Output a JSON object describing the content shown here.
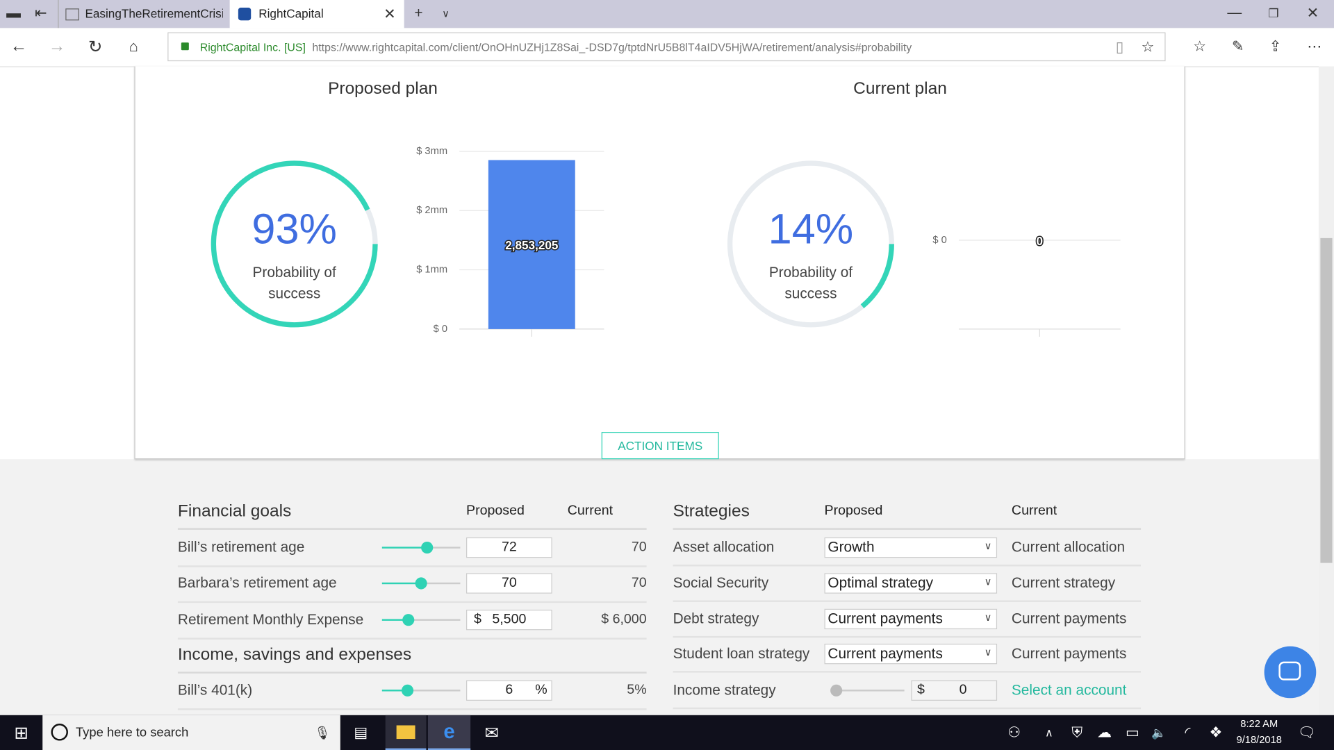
{
  "browser": {
    "tabs": [
      "EasingTheRetirementCrisisN",
      "RightCapital"
    ],
    "site_identity": "RightCapital Inc. [US]",
    "url": "https://www.rightcapital.com/client/OnOHnUZHj1Z8Sai_-DSD7g/tptdNrU5B8lT4aIDV5HjWA/retirement/analysis#probability"
  },
  "plans": [
    {
      "title": "Proposed plan",
      "probability": {
        "value": 93,
        "label": "93%"
      },
      "caption": "Probability of success",
      "chart": {
        "type": "bar",
        "values": [
          2853205
        ],
        "value_labels": [
          "2,853,205"
        ],
        "ylim": [
          0,
          3000000
        ],
        "yticks": [
          {
            "value": 0,
            "label": "$ 0"
          },
          {
            "value": 1000000,
            "label": "$ 1mm"
          },
          {
            "value": 2000000,
            "label": "$ 2mm"
          },
          {
            "value": 3000000,
            "label": "$ 3mm"
          }
        ],
        "color": "#4f86ec"
      }
    },
    {
      "title": "Current plan",
      "probability": {
        "value": 14,
        "label": "14%"
      },
      "caption": "Probability of success",
      "chart": {
        "type": "bar",
        "values": [
          0
        ],
        "ylim": [
          -1,
          1
        ],
        "yticks": [
          {
            "value": 0,
            "label": "$ 0"
          }
        ],
        "color": "#4f86ec"
      }
    }
  ],
  "action_items": "ACTION ITEMS",
  "goals": {
    "title": "Financial goals",
    "proposed": "Proposed",
    "current": "Current",
    "rows": [
      {
        "label": "Bill’s retirement age",
        "input": "72",
        "current": "70"
      },
      {
        "label": "Barbara’s retirement age",
        "input": "70",
        "current": "70"
      },
      {
        "label": "Retirement Monthly Expense",
        "prefix": "$",
        "input": "5,500",
        "current": "$ 6,000"
      }
    ],
    "subtitle": "Income, savings and expenses",
    "rows2": [
      {
        "label": "Bill’s 401(k)",
        "input": "6",
        "suffix": "%",
        "current": "5%"
      }
    ]
  },
  "strategies": {
    "title": "Strategies",
    "proposed": "Proposed",
    "current": "Current",
    "rows": [
      {
        "label": "Asset allocation",
        "select": "Growth",
        "current": "Current allocation"
      },
      {
        "label": "Social Security",
        "select": "Optimal strategy",
        "current": "Current strategy"
      },
      {
        "label": "Debt strategy",
        "select": "Current payments",
        "current": "Current payments"
      },
      {
        "label": "Student loan strategy",
        "select": "Current payments",
        "current": "Current payments"
      },
      {
        "label": "Income strategy",
        "prefix": "$",
        "input": "0",
        "current": "Select an account"
      }
    ]
  },
  "taskbar": {
    "search": "Type here to search",
    "time": "8:22 AM",
    "date": "9/18/2018"
  }
}
